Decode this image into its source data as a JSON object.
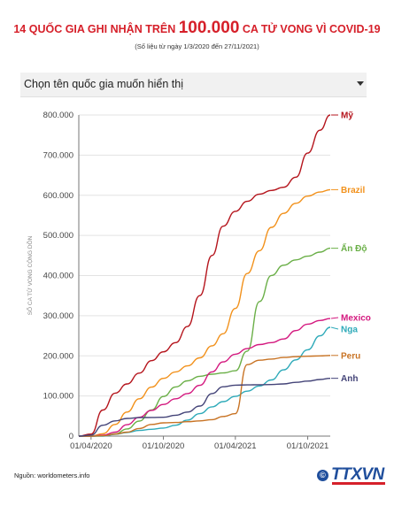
{
  "header": {
    "title_prefix": "14 QUỐC GIA GHI NHẬN TRÊN ",
    "title_number": "100.000",
    "title_suffix": " CA TỬ VONG VÌ COVID-19",
    "subtitle": "(Số liệu từ ngày 1/3/2020 đến 27/11/2021)"
  },
  "dropdown": {
    "label": "Chọn tên quốc gia muốn hiển thị"
  },
  "footer": {
    "source": "Nguồn: worldometers.info",
    "logo_mark": "©",
    "logo_text": "TTXVN"
  },
  "colors": {
    "title": "#d6202a",
    "axis": "#777777",
    "grid": "#e3e3e3"
  },
  "chart_data": {
    "type": "line",
    "title": "",
    "ylabel": "SỐ CA TỬ VONG CỘNG DỒN",
    "xlabel": "",
    "x_ticks": [
      "01/04/2020",
      "01/10/2020",
      "01/04/2021",
      "01/10/2021"
    ],
    "y_ticks": [
      "0",
      "100.000",
      "200.000",
      "300.000",
      "400.000",
      "500.000",
      "600.000",
      "700.000",
      "800.000"
    ],
    "ylim": [
      0,
      800000
    ],
    "xlim": [
      "2020-03-01",
      "2021-11-27"
    ],
    "grid": true,
    "x": [
      "2020-03-01",
      "2020-04-01",
      "2020-05-01",
      "2020-06-01",
      "2020-07-01",
      "2020-08-01",
      "2020-09-01",
      "2020-10-01",
      "2020-11-01",
      "2020-12-01",
      "2021-01-01",
      "2021-02-01",
      "2021-03-01",
      "2021-04-01",
      "2021-05-01",
      "2021-06-01",
      "2021-07-01",
      "2021-08-01",
      "2021-09-01",
      "2021-10-01",
      "2021-11-01",
      "2021-11-27"
    ],
    "series": [
      {
        "name": "Mỹ",
        "color": "#b5151d",
        "values": [
          0,
          5000,
          65000,
          107000,
          130000,
          157000,
          188000,
          210000,
          233000,
          273000,
          350000,
          450000,
          523000,
          560000,
          585000,
          603000,
          612000,
          620000,
          645000,
          705000,
          762000,
          800000
        ]
      },
      {
        "name": "Brazil",
        "color": "#f2911b",
        "values": [
          0,
          200,
          6000,
          29000,
          60000,
          93000,
          122000,
          144000,
          160000,
          175000,
          195000,
          225000,
          255000,
          318000,
          405000,
          462000,
          520000,
          555000,
          580000,
          598000,
          608000,
          614000
        ]
      },
      {
        "name": "Ấn Độ",
        "color": "#6aaf47",
        "values": [
          0,
          30,
          1100,
          5400,
          17800,
          37400,
          65300,
          98700,
          122600,
          137700,
          149000,
          154300,
          157300,
          162900,
          211900,
          335100,
          400300,
          425800,
          439000,
          448300,
          458400,
          468000
        ]
      },
      {
        "name": "Mexico",
        "color": "#d4197f",
        "values": [
          0,
          30,
          2200,
          10000,
          28500,
          47000,
          64100,
          79000,
          93000,
          106000,
          126500,
          160000,
          185000,
          204000,
          218000,
          228000,
          233000,
          242000,
          263000,
          279000,
          288000,
          293000
        ]
      },
      {
        "name": "Nga",
        "color": "#2eaab9",
        "values": [
          0,
          10,
          100,
          4600,
          9100,
          14100,
          17000,
          20000,
          27000,
          40000,
          56000,
          73000,
          86000,
          99000,
          112000,
          125000,
          140000,
          165000,
          190000,
          215000,
          250000,
          271000
        ]
      },
      {
        "name": "Peru",
        "color": "#c87324",
        "values": [
          0,
          10,
          900,
          5000,
          10000,
          19000,
          29000,
          33000,
          34000,
          36000,
          38000,
          41000,
          49000,
          56000,
          178000,
          189000,
          192000,
          196000,
          198000,
          199000,
          200000,
          201000
        ]
      },
      {
        "name": "Anh",
        "color": "#444478",
        "values": [
          0,
          2400,
          27000,
          38000,
          44000,
          46000,
          46500,
          47000,
          52000,
          60000,
          75000,
          106000,
          123000,
          127000,
          127700,
          128000,
          128500,
          130000,
          134000,
          137000,
          141000,
          144000
        ]
      }
    ]
  }
}
